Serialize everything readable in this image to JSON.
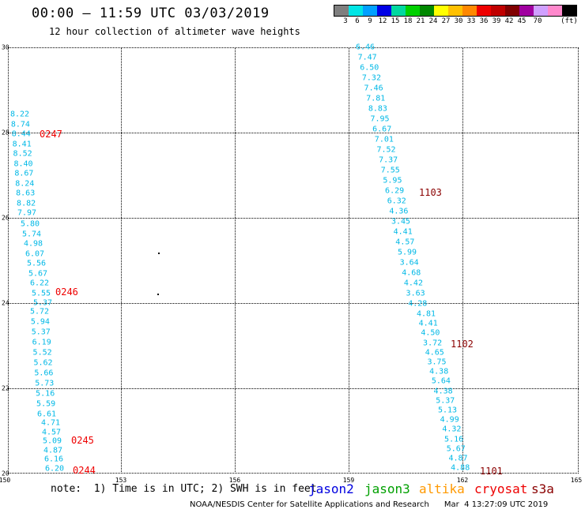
{
  "header": {
    "title": "00:00 – 11:59 UTC 03/03/2019",
    "subtitle": "12 hour collection of altimeter wave heights"
  },
  "legend": {
    "colors": [
      "#7f7f7f",
      "#00e5e5",
      "#00a0ff",
      "#0000e5",
      "#00d8a0",
      "#00d000",
      "#008800",
      "#ffff00",
      "#ffc000",
      "#ff8800",
      "#ee0000",
      "#c00000",
      "#800000",
      "#a000a0",
      "#d0a0ff",
      "#ff88cc",
      "#000000"
    ],
    "labels": [
      "3",
      "6",
      "9",
      "12",
      "15",
      "18",
      "21",
      "24",
      "27",
      "30",
      "33",
      "36",
      "39",
      "42",
      "45",
      "70",
      "(ft)"
    ]
  },
  "axes": {
    "x_ticks": [
      "150",
      "153",
      "156",
      "159",
      "162",
      "165"
    ],
    "y_ticks": [
      "30",
      "28",
      "26",
      "24",
      "22",
      "20"
    ]
  },
  "tracks": [
    {
      "pass_label": "0247",
      "values": [
        "8.22",
        "8.74",
        "8.44",
        "8.41",
        "8.52",
        "8.40",
        "8.67",
        "8.24",
        "8.63",
        "8.82",
        "7.97"
      ]
    },
    {
      "pass_label": "0246",
      "values": [
        "5.80",
        "5.74",
        "4.98",
        "6.07",
        "5.56",
        "5.67",
        "6.22",
        "5.55",
        "5.37"
      ]
    },
    {
      "pass_label": "",
      "values": [
        "5.72",
        "5.94",
        "5.37",
        "6.19",
        "5.52",
        "5.62",
        "5.66",
        "5.73",
        "5.16",
        "5.59",
        "6.61"
      ]
    },
    {
      "pass_label": "0245",
      "values": [
        "4.71",
        "4.57",
        "5.09",
        "4.87",
        "6.16",
        "6.20"
      ]
    },
    {
      "pass_label": "0244",
      "values": []
    },
    {
      "pass_label": "1103",
      "values": [
        "6.46",
        "7.47",
        "6.50",
        "7.32",
        "7.46",
        "7.81",
        "8.83",
        "7.95",
        "6.67",
        "7.01",
        "7.52",
        "7.37",
        "7.55",
        "5.95",
        "6.29",
        "6.32",
        "4.36",
        "3.45",
        "4.41",
        "4.57",
        "5.99",
        "3.64",
        "4.68",
        "4.42",
        "3.63",
        "4.28"
      ]
    },
    {
      "pass_label": "1102",
      "values": [
        "4.81",
        "4.41",
        "4.50",
        "3.72",
        "4.65",
        "3.75",
        "4.38",
        "5.64",
        "4.38",
        "5.37",
        "5.13",
        "4.99",
        "4.32",
        "5.16",
        "5.67",
        "4.87",
        "4.88"
      ]
    },
    {
      "pass_label": "1101",
      "values": []
    }
  ],
  "footer": {
    "note": "note:  1) Time is in UTC; 2) SWH is in feet",
    "satellites": [
      {
        "name": "jason2",
        "color": "#0000e0"
      },
      {
        "name": "jason3",
        "color": "#00a000"
      },
      {
        "name": "altika",
        "color": "#ff9900"
      },
      {
        "name": "cryosat",
        "color": "#ee0000"
      },
      {
        "name": "s3a",
        "color": "#8a0000"
      }
    ],
    "credit": "NOAA/NESDIS Center for Satellite Applications and Research      Mar  4 13:27:09 UTC 2019"
  }
}
